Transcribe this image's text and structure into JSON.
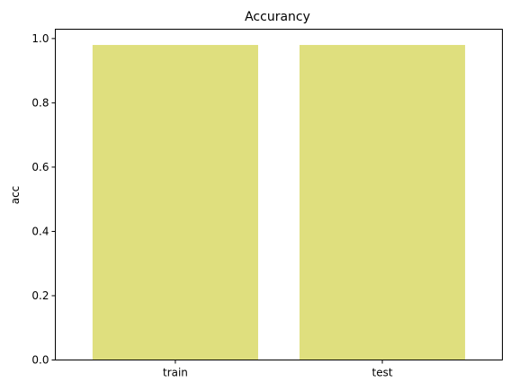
{
  "chart_data": {
    "type": "bar",
    "title": "Accurancy",
    "xlabel": "",
    "ylabel": "acc",
    "categories": [
      "train",
      "test"
    ],
    "values": [
      0.98,
      0.98
    ],
    "ylim": [
      0,
      1.029
    ],
    "yticks": [
      "0.0",
      "0.2",
      "0.4",
      "0.6",
      "0.8",
      "1.0"
    ],
    "bar_color": "#dfdf7e",
    "grid": false,
    "legend": "none"
  }
}
